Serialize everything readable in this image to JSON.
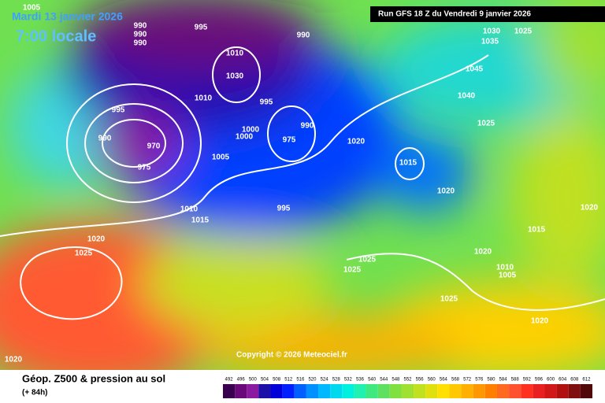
{
  "header": {
    "date": "Mardi 13 janvier 2026",
    "time": "7:00 locale",
    "run": "Run GFS 18 Z du Vendredi 9 janvier 2026"
  },
  "copyright": "Copyright © 2026 Meteociel.fr",
  "footer": {
    "title": "Géop. Z500 & pression au sol",
    "subtitle": "(+ 84h)"
  },
  "isobar_labels": [
    "1005",
    "990",
    "990",
    "990",
    "995",
    "990",
    "1010",
    "1030",
    "995",
    "1010",
    "995",
    "1000",
    "1000",
    "990",
    "975",
    "990",
    "970",
    "975",
    "1005",
    "1020",
    "1015",
    "1020",
    "1045",
    "1040",
    "1025",
    "1030",
    "1035",
    "1025",
    "1020",
    "1015",
    "1010",
    "1015",
    "995",
    "1020",
    "1025",
    "1025",
    "1025",
    "1020",
    "1010",
    "1005",
    "1025",
    "1020",
    "1020"
  ],
  "legend": {
    "ticks": [
      492,
      496,
      500,
      504,
      508,
      512,
      516,
      520,
      524,
      528,
      532,
      536,
      540,
      544,
      548,
      552,
      556,
      560,
      564,
      568,
      572,
      576,
      580,
      584,
      588,
      592,
      596,
      600,
      604,
      608,
      612
    ],
    "colors": [
      "#3a0050",
      "#6a0a7a",
      "#8a1aa0",
      "#1b0fa8",
      "#0000d8",
      "#0020ff",
      "#0060ff",
      "#0090ff",
      "#00b8ff",
      "#00d8f0",
      "#00f0e0",
      "#20f0b0",
      "#40e880",
      "#60e060",
      "#80e040",
      "#a0e030",
      "#c0e020",
      "#e0e010",
      "#ffe000",
      "#ffc800",
      "#ffb000",
      "#ff9800",
      "#ff8000",
      "#ff6a20",
      "#ff5030",
      "#ff3020",
      "#e82020",
      "#d01818",
      "#b01010",
      "#801010",
      "#500808"
    ]
  }
}
